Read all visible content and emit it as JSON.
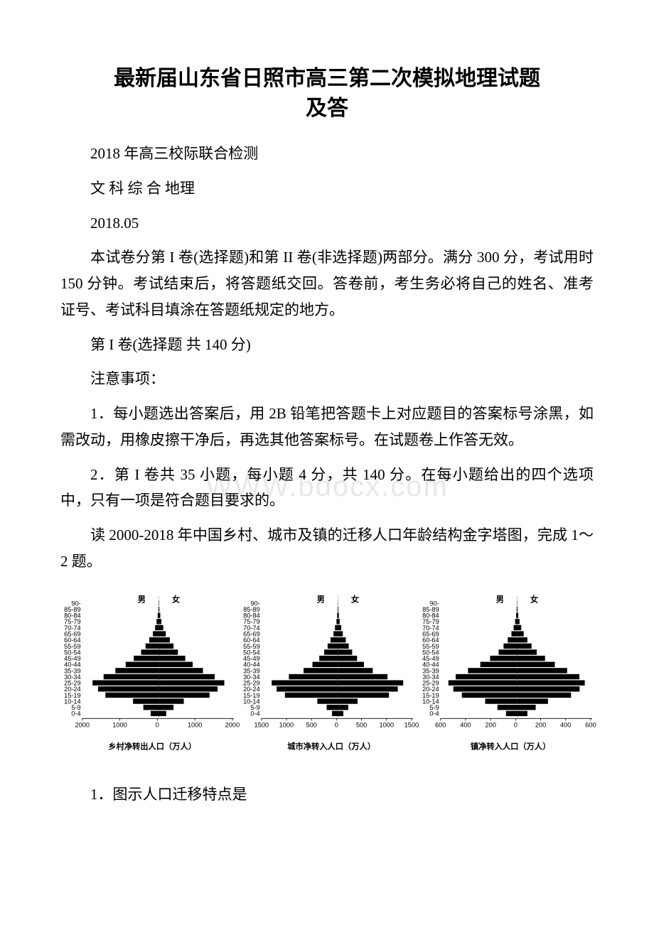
{
  "title_l1": "最新届山东省日照市高三第二次模拟地理试题",
  "title_l2": "及答",
  "p1": "2018 年高三校际联合检测",
  "p2": "文 科 综 合 地理",
  "p3": "2018.05",
  "p4": "本试卷分第 I 卷(选择题)和第 II 卷(非选择题)两部分。满分 300 分，考试用时 150 分钟。考试结束后，将答题纸交回。答卷前，考生务必将自己的姓名、准考证号、考试科目填涂在答题纸规定的地方。",
  "p5": "第 I 卷(选择题 共 140 分)",
  "p6": "注意事项：",
  "p7": "1．每小题选出答案后，用 2B 铅笔把答题卡上对应题目的答案标号涂黑，如需改动，用橡皮擦干净后，再选其他答案标号。在试题卷上作答无效。",
  "p8": "2．第 I 卷共 35 小题，每小题 4 分，共 140 分。在每小题给出的四个选项中，只有一项是符合题目要求的。",
  "p9": "读 2000-2018 年中国乡村、城市及镇的迁移人口年龄结构金字塔图，完成 1～2 题。",
  "q1": "1．图示人口迁移特点是",
  "watermark_text": "WWW.bdocx.com",
  "pyramids": {
    "age_labels": [
      "90-",
      "85-89",
      "80-84",
      "75-79",
      "70-74",
      "65-69",
      "60-64",
      "55-59",
      "50-54",
      "45-49",
      "40-44",
      "35-39",
      "30-34",
      "25-29",
      "20-24",
      "15-19",
      "10-14",
      "5-9",
      "0-4"
    ],
    "gender_m": "男",
    "gender_f": "女",
    "charts": [
      {
        "caption": "乡村净转出人口（万人）",
        "xticks": [
          2000,
          1000,
          0,
          1000,
          2000
        ],
        "xmax": 2000,
        "male": [
          5,
          10,
          30,
          60,
          100,
          160,
          260,
          360,
          480,
          680,
          900,
          1180,
          1500,
          1800,
          1650,
          1450,
          700,
          420,
          220
        ],
        "female": [
          5,
          15,
          40,
          70,
          120,
          190,
          300,
          400,
          520,
          720,
          920,
          1200,
          1520,
          1780,
          1600,
          1380,
          680,
          400,
          200
        ]
      },
      {
        "caption": "城市净转入人口（万人）",
        "xticks": [
          1500,
          1000,
          500,
          0,
          500,
          1000,
          1500
        ],
        "xmax": 1500,
        "male": [
          2,
          6,
          16,
          30,
          60,
          90,
          150,
          210,
          280,
          380,
          520,
          700,
          1000,
          1350,
          1250,
          1080,
          420,
          230,
          120
        ],
        "female": [
          2,
          8,
          20,
          36,
          68,
          100,
          160,
          220,
          290,
          390,
          530,
          710,
          1010,
          1330,
          1220,
          1040,
          400,
          210,
          110
        ]
      },
      {
        "caption": "镇净转入人口（万人）",
        "xticks": [
          600,
          400,
          200,
          0,
          200,
          400,
          600
        ],
        "xmax": 600,
        "male": [
          1,
          3,
          8,
          16,
          28,
          46,
          76,
          110,
          150,
          220,
          300,
          400,
          500,
          560,
          520,
          450,
          260,
          160,
          90
        ],
        "female": [
          1,
          4,
          10,
          20,
          34,
          54,
          84,
          118,
          160,
          228,
          308,
          408,
          508,
          552,
          510,
          440,
          252,
          152,
          84
        ]
      }
    ]
  }
}
